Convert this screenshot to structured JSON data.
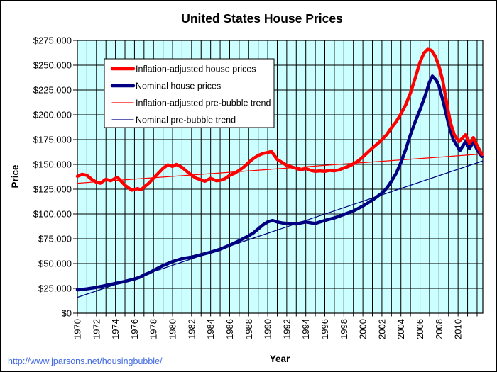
{
  "page": {
    "background": "#FFFFFF",
    "border_color": "#000000"
  },
  "footer": {
    "url": "http://www.jparsons.net/housingbubble/",
    "link_color": "#4169E1"
  },
  "chart_data": {
    "type": "line",
    "title": "United States House Prices",
    "xlabel": "Year",
    "ylabel": "Price",
    "plot_bg": "#CCFFFF",
    "grid_color": "#000000",
    "grid": "on",
    "xlim": [
      1970,
      2012.6
    ],
    "ylim": [
      0,
      275000
    ],
    "x_gridline_interval_years": 1,
    "y_gridline_interval": 25000,
    "x_ticks": [
      1970,
      1972,
      1974,
      1976,
      1978,
      1980,
      1982,
      1984,
      1986,
      1988,
      1990,
      1992,
      1994,
      1996,
      1998,
      2000,
      2002,
      2004,
      2006,
      2008,
      2010
    ],
    "y_ticks": [
      {
        "value": 0,
        "label": "$0"
      },
      {
        "value": 25000,
        "label": "$25,000"
      },
      {
        "value": 50000,
        "label": "$50,000"
      },
      {
        "value": 75000,
        "label": "$75,000"
      },
      {
        "value": 100000,
        "label": "$100,000"
      },
      {
        "value": 125000,
        "label": "$125,000"
      },
      {
        "value": 150000,
        "label": "$150,000"
      },
      {
        "value": 175000,
        "label": "$175,000"
      },
      {
        "value": 200000,
        "label": "$200,000"
      },
      {
        "value": 225000,
        "label": "$225,000"
      },
      {
        "value": 250000,
        "label": "$250,000"
      },
      {
        "value": 275000,
        "label": "$275,000"
      }
    ],
    "legend": {
      "position": "upper-left",
      "order": [
        "real",
        "nominal",
        "trend_real",
        "trend_nominal"
      ]
    },
    "series": [
      {
        "id": "trend_real",
        "name": "Inflation-adjusted pre-bubble trend",
        "color": "#FF0000",
        "width": 1.25,
        "points": [
          [
            1970,
            131000
          ],
          [
            2012.6,
            160500
          ]
        ]
      },
      {
        "id": "trend_nominal",
        "name": "Nominal pre-bubble trend",
        "color": "#000080",
        "width": 1.25,
        "points": [
          [
            1970,
            16000
          ],
          [
            2012.6,
            153500
          ]
        ]
      },
      {
        "id": "nominal",
        "name": "Nominal house prices",
        "color": "#000080",
        "width": 4.5,
        "points": [
          [
            1970,
            23500
          ],
          [
            1971,
            24500
          ],
          [
            1972,
            26000
          ],
          [
            1973,
            28000
          ],
          [
            1974,
            30000
          ],
          [
            1975,
            32000
          ],
          [
            1976,
            34500
          ],
          [
            1976.5,
            36000
          ],
          [
            1977,
            38500
          ],
          [
            1977.5,
            40500
          ],
          [
            1978,
            43000
          ],
          [
            1978.5,
            45500
          ],
          [
            1979,
            48000
          ],
          [
            1979.5,
            50000
          ],
          [
            1980,
            52000
          ],
          [
            1980.5,
            53500
          ],
          [
            1981,
            55000
          ],
          [
            1982,
            56500
          ],
          [
            1983,
            59000
          ],
          [
            1984,
            61500
          ],
          [
            1985,
            64500
          ],
          [
            1986,
            68500
          ],
          [
            1987,
            73000
          ],
          [
            1987.5,
            75500
          ],
          [
            1988,
            78000
          ],
          [
            1988.5,
            81000
          ],
          [
            1989,
            85000
          ],
          [
            1989.5,
            89000
          ],
          [
            1990,
            92000
          ],
          [
            1990.5,
            93500
          ],
          [
            1991,
            92000
          ],
          [
            1991.5,
            91000
          ],
          [
            1992,
            90500
          ],
          [
            1993,
            90000
          ],
          [
            1994,
            92000
          ],
          [
            1994.6,
            91000
          ],
          [
            1995,
            90500
          ],
          [
            1996,
            93500
          ],
          [
            1997,
            96000
          ],
          [
            1998,
            99500
          ],
          [
            1999,
            103000
          ],
          [
            2000,
            108000
          ],
          [
            2001,
            114000
          ],
          [
            2002,
            121000
          ],
          [
            2002.5,
            126000
          ],
          [
            2003,
            133000
          ],
          [
            2003.5,
            141000
          ],
          [
            2004,
            152000
          ],
          [
            2004.5,
            165000
          ],
          [
            2005,
            180000
          ],
          [
            2005.5,
            193000
          ],
          [
            2006,
            205000
          ],
          [
            2006.5,
            218000
          ],
          [
            2007,
            233000
          ],
          [
            2007.3,
            239000
          ],
          [
            2007.7,
            235000
          ],
          [
            2008,
            229000
          ],
          [
            2008.5,
            211000
          ],
          [
            2009,
            191000
          ],
          [
            2009.5,
            175000
          ],
          [
            2010.2,
            164000
          ],
          [
            2010.8,
            173000
          ],
          [
            2011.2,
            166000
          ],
          [
            2011.6,
            172500
          ],
          [
            2012,
            165000
          ],
          [
            2012.5,
            158000
          ]
        ]
      },
      {
        "id": "real",
        "name": "Inflation-adjusted house prices",
        "color": "#FF0000",
        "width": 4.5,
        "points": [
          [
            1970,
            138000
          ],
          [
            1970.5,
            140000
          ],
          [
            1971,
            139000
          ],
          [
            1971.5,
            135000
          ],
          [
            1972,
            132000
          ],
          [
            1972.4,
            131000
          ],
          [
            1973,
            135000
          ],
          [
            1973.5,
            133500
          ],
          [
            1974.2,
            137000
          ],
          [
            1975,
            129000
          ],
          [
            1975.7,
            124000
          ],
          [
            1976.3,
            125500
          ],
          [
            1976.7,
            124500
          ],
          [
            1977,
            127000
          ],
          [
            1977.5,
            131000
          ],
          [
            1978,
            136000
          ],
          [
            1978.5,
            141000
          ],
          [
            1979,
            146000
          ],
          [
            1979.5,
            149500
          ],
          [
            1980,
            148000
          ],
          [
            1980.4,
            150000
          ],
          [
            1981,
            147000
          ],
          [
            1981.5,
            143000
          ],
          [
            1982,
            139000
          ],
          [
            1982.5,
            136000
          ],
          [
            1983,
            134500
          ],
          [
            1983.4,
            133000
          ],
          [
            1984,
            136000
          ],
          [
            1984.6,
            133500
          ],
          [
            1985,
            134000
          ],
          [
            1985.5,
            135500
          ],
          [
            1986,
            139000
          ],
          [
            1986.5,
            141000
          ],
          [
            1987,
            144000
          ],
          [
            1987.5,
            147500
          ],
          [
            1988,
            152000
          ],
          [
            1988.5,
            156000
          ],
          [
            1989,
            159000
          ],
          [
            1989.5,
            161000
          ],
          [
            1990,
            162000
          ],
          [
            1990.4,
            163000
          ],
          [
            1991,
            155000
          ],
          [
            1991.5,
            152000
          ],
          [
            1992,
            149000
          ],
          [
            1992.5,
            147500
          ],
          [
            1993,
            146000
          ],
          [
            1993.5,
            144500
          ],
          [
            1994,
            146000
          ],
          [
            1994.5,
            144000
          ],
          [
            1995,
            143000
          ],
          [
            1995.5,
            143500
          ],
          [
            1996,
            143000
          ],
          [
            1996.5,
            144000
          ],
          [
            1997,
            143500
          ],
          [
            1997.5,
            144500
          ],
          [
            1998,
            146500
          ],
          [
            1998.5,
            148000
          ],
          [
            1999,
            150500
          ],
          [
            1999.5,
            153500
          ],
          [
            2000,
            157500
          ],
          [
            2000.5,
            162000
          ],
          [
            2001,
            166500
          ],
          [
            2001.5,
            170500
          ],
          [
            2002,
            175000
          ],
          [
            2002.5,
            180000
          ],
          [
            2003,
            187000
          ],
          [
            2003.5,
            193000
          ],
          [
            2004,
            201000
          ],
          [
            2004.5,
            210000
          ],
          [
            2005,
            222000
          ],
          [
            2005.5,
            237000
          ],
          [
            2006,
            253000
          ],
          [
            2006.4,
            262000
          ],
          [
            2006.8,
            266000
          ],
          [
            2007.2,
            265000
          ],
          [
            2007.6,
            259000
          ],
          [
            2008,
            249000
          ],
          [
            2008.4,
            234000
          ],
          [
            2008.8,
            212000
          ],
          [
            2009.2,
            192000
          ],
          [
            2009.6,
            180000
          ],
          [
            2010.1,
            173000
          ],
          [
            2010.8,
            180000
          ],
          [
            2011.2,
            171000
          ],
          [
            2011.6,
            177000
          ],
          [
            2012,
            169000
          ],
          [
            2012.5,
            160000
          ]
        ]
      }
    ]
  }
}
